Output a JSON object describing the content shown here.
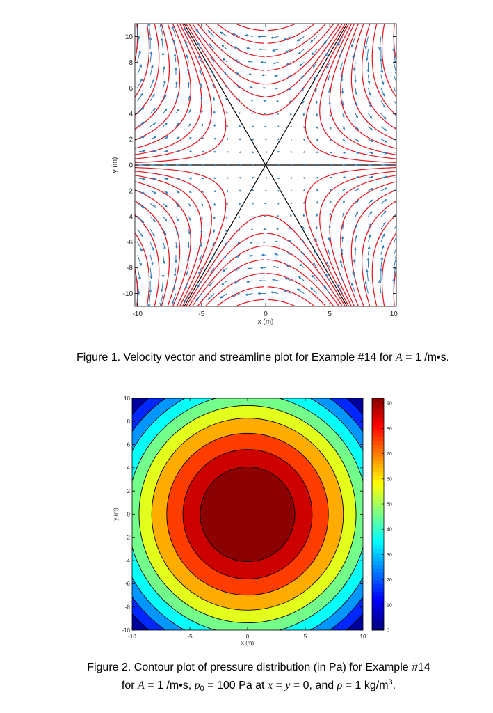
{
  "chart_data": [
    {
      "type": "vector-field",
      "xlabel": "x (m)",
      "ylabel": "y (m)",
      "xlim": [
        -10.2,
        10.2
      ],
      "ylim": [
        -11,
        11
      ],
      "xticks": [
        -10,
        -5,
        0,
        5,
        10
      ],
      "yticks": [
        -10,
        -8,
        -6,
        -4,
        -2,
        0,
        2,
        4,
        6,
        8,
        10
      ],
      "arrow_color": "#2b7bba",
      "streamline_color": "#e8141e"
    },
    {
      "type": "contour",
      "xlabel": "x (m)",
      "ylabel": "y (m)",
      "xlim": [
        -10,
        10
      ],
      "ylim": [
        -10,
        10
      ],
      "xticks": [
        -10,
        -5,
        0,
        5,
        10
      ],
      "yticks": [
        -10,
        -8,
        -6,
        -4,
        -2,
        0,
        2,
        4,
        6,
        8,
        10
      ],
      "colorbar_lim": [
        0,
        92
      ],
      "colorbar_ticks": [
        0,
        10,
        20,
        30,
        40,
        50,
        60,
        70,
        80,
        90
      ]
    }
  ],
  "captions": [
    [
      "Figure 1. Velocity vector and streamline plot for Example #14 for ",
      "A",
      " = 1 /m•s."
    ],
    [
      "Figure 2. Contour plot of pressure distribution (in Pa) for Example #14"
    ],
    [
      "for ",
      "A",
      " = 1 /m•s, ",
      "p",
      "0",
      " = 100 Pa at ",
      "x",
      " = ",
      "y",
      " = 0, and ",
      "ρ",
      " = 1 kg/m",
      "3",
      "."
    ]
  ]
}
